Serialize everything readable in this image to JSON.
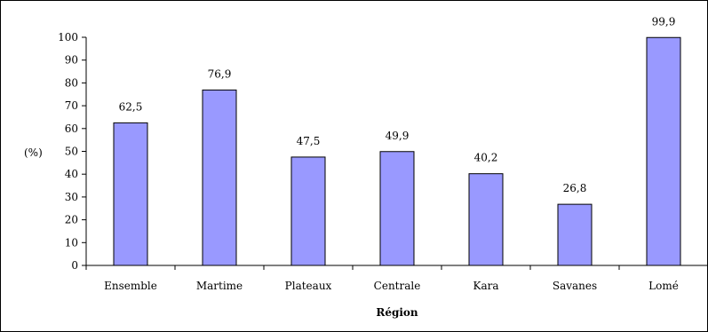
{
  "chart_data": {
    "type": "bar",
    "title": "",
    "xlabel": "Région",
    "ylabel": "(%)",
    "ylim": [
      0,
      100
    ],
    "yticks": [
      0,
      10,
      20,
      30,
      40,
      50,
      60,
      70,
      80,
      90,
      100
    ],
    "ytick_labels": [
      "0",
      "10",
      "20",
      "30",
      "40",
      "50",
      "60",
      "70",
      "80",
      "90",
      "100"
    ],
    "categories": [
      "Ensemble",
      "Martime",
      "Plateaux",
      "Centrale",
      "Kara",
      "Savanes",
      "Lomé"
    ],
    "values": [
      62.5,
      76.9,
      47.5,
      49.9,
      40.2,
      26.8,
      99.9
    ],
    "value_labels": [
      "62,5",
      "76,9",
      "47,5",
      "49,9",
      "40,2",
      "26,8",
      "99,9"
    ],
    "grid": false,
    "legend": "none",
    "colors": {
      "bar_fill": "#9999ff",
      "bar_stroke": "#000000",
      "axis": "#000000",
      "background": "#ffffff"
    }
  }
}
